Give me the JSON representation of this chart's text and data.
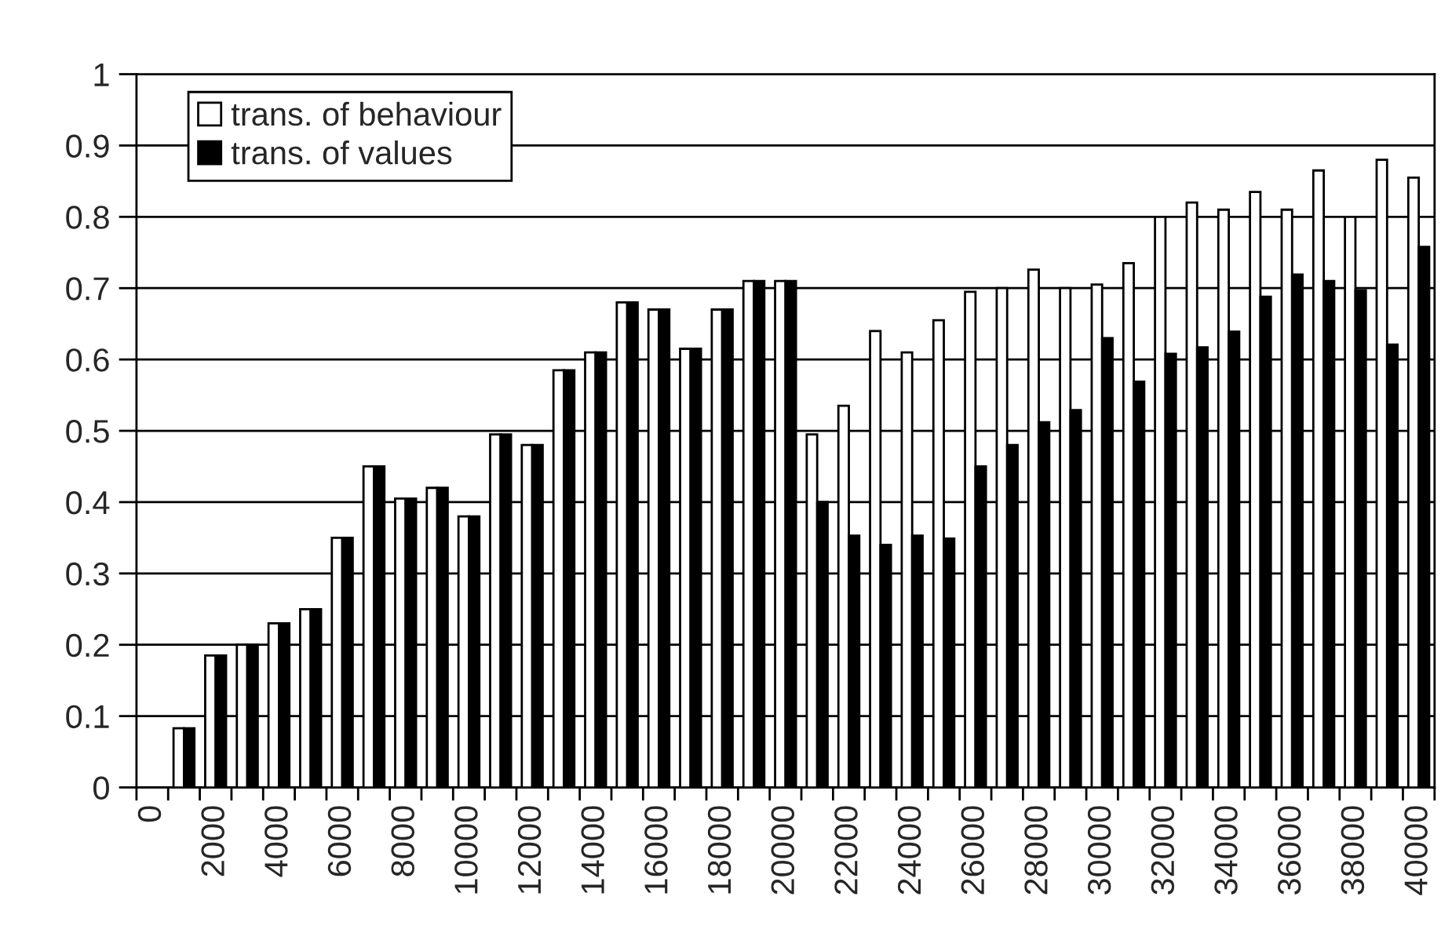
{
  "chart_data": {
    "type": "bar",
    "categories": [
      "0",
      null,
      "2000",
      null,
      "4000",
      null,
      "6000",
      null,
      "8000",
      null,
      "10000",
      null,
      "12000",
      null,
      "14000",
      null,
      "16000",
      null,
      "18000",
      null,
      "20000",
      null,
      "22000",
      null,
      "24000",
      null,
      "26000",
      null,
      "28000",
      null,
      "30000",
      null,
      "32000",
      null,
      "34000",
      null,
      "36000",
      null,
      "38000",
      null,
      "40000"
    ],
    "series": [
      {
        "name": "trans. of behaviour",
        "color": "#ffffff",
        "values": [
          null,
          0.083,
          0.185,
          0.2,
          0.23,
          0.25,
          0.35,
          0.45,
          0.405,
          0.42,
          0.38,
          0.495,
          0.48,
          0.585,
          0.61,
          0.68,
          0.67,
          0.615,
          0.67,
          0.71,
          0.71,
          0.495,
          0.535,
          0.64,
          0.61,
          0.655,
          0.695,
          0.7,
          0.726,
          0.7,
          0.705,
          0.735,
          0.8,
          0.82,
          0.81,
          0.835,
          0.81,
          0.865,
          0.8,
          0.88,
          0.855
        ]
      },
      {
        "name": "trans. of values",
        "color": "#000000",
        "values": [
          null,
          0.083,
          0.185,
          0.2,
          0.23,
          0.25,
          0.35,
          0.45,
          0.405,
          0.42,
          0.38,
          0.495,
          0.48,
          0.585,
          0.61,
          0.68,
          0.67,
          0.615,
          0.67,
          0.71,
          0.71,
          0.4,
          0.353,
          0.34,
          0.353,
          0.349,
          0.45,
          0.48,
          0.512,
          0.529,
          0.63,
          0.569,
          0.608,
          0.617,
          0.639,
          0.688,
          0.719,
          0.71,
          0.697,
          0.621,
          0.758
        ]
      }
    ],
    "ylim": [
      0,
      1
    ],
    "yticks": [
      0,
      0.1,
      0.2,
      0.3,
      0.4,
      0.5,
      0.6,
      0.7,
      0.8,
      0.9,
      1
    ],
    "grid": "y",
    "legend": "top left"
  }
}
